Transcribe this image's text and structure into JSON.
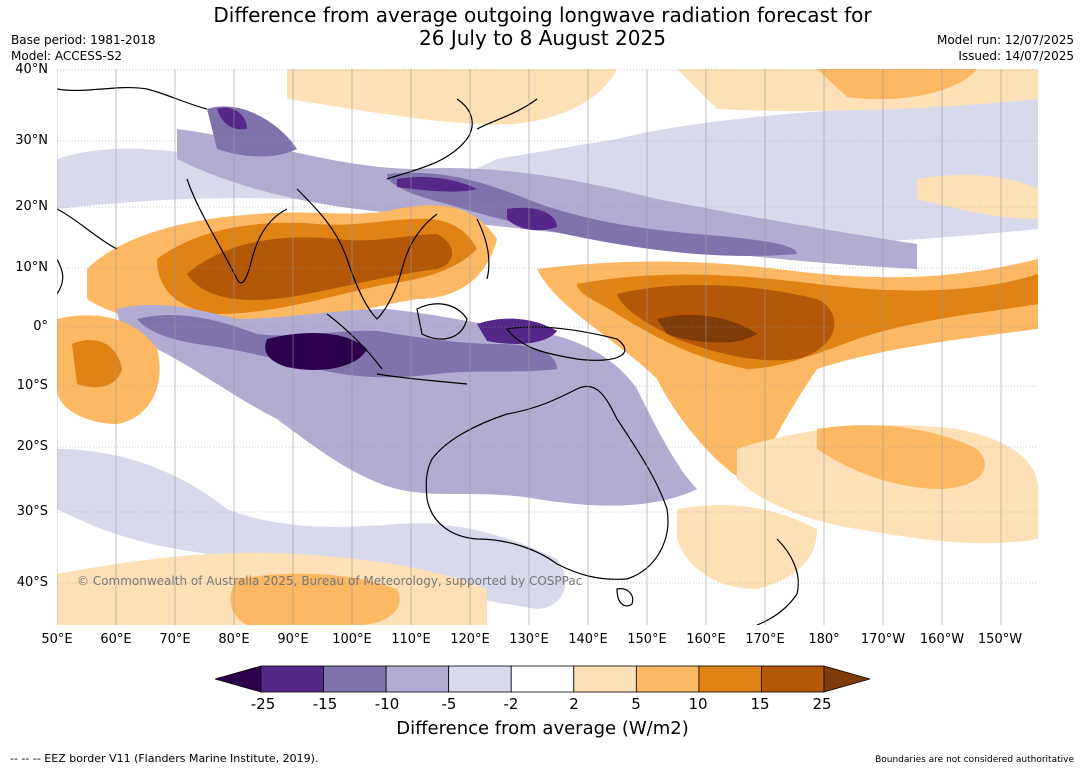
{
  "title_line1": "Difference from average outgoing longwave radiation forecast for",
  "title_line2": "26 July to 8 August 2025",
  "meta_left": {
    "base_period": "Base period: 1981-2018",
    "model": "Model: ACCESS-S2"
  },
  "meta_right": {
    "model_run": "Model run: 12/07/2025",
    "issued": "Issued: 14/07/2025"
  },
  "lat_ticks": [
    "40°N",
    "30°N",
    "20°N",
    "10°N",
    "0°",
    "10°S",
    "20°S",
    "30°S",
    "40°S"
  ],
  "lon_ticks": [
    "50°E",
    "60°E",
    "70°E",
    "80°E",
    "90°E",
    "100°E",
    "110°E",
    "120°E",
    "130°E",
    "140°E",
    "150°E",
    "160°E",
    "170°E",
    "180°",
    "170°W",
    "160°W",
    "150°W"
  ],
  "colorbar": {
    "labels": [
      "-25",
      "-15",
      "-10",
      "-5",
      "-2",
      "2",
      "5",
      "10",
      "15",
      "25"
    ],
    "colors": [
      "#2d004b",
      "#542788",
      "#8073ac",
      "#b2abd2",
      "#d8daeb",
      "#ffffff",
      "#fee0b6",
      "#fdb863",
      "#e08214",
      "#b35806",
      "#7f3b08"
    ],
    "title": "Difference from average (W/m2)"
  },
  "copyright": "© Commonwealth of Australia 2025, Bureau of Meteorology, supported by COSPPac",
  "eez_note": "--  --  -- EEZ border V11 (Flanders Marine Institute, 2019).",
  "boundaries_note": "Boundaries are not considered authoritative"
}
